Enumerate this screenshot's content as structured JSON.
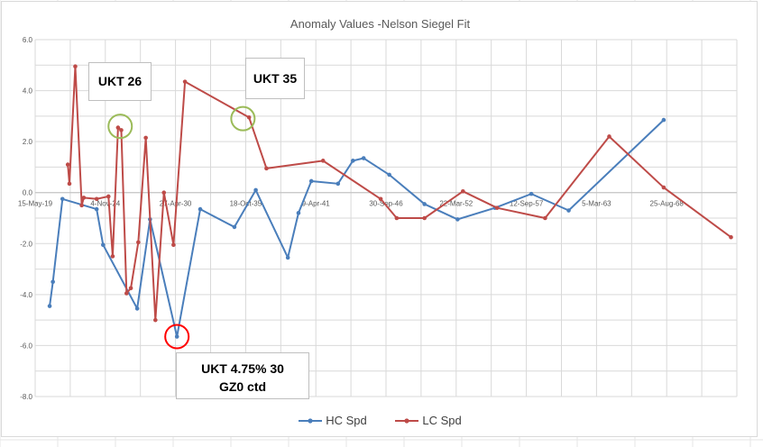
{
  "chart_data": {
    "type": "scatter",
    "title": "Anomaly Values -Nelson Siegel Fit",
    "x_ticks": [
      "15-May-19",
      "4-Nov-24",
      "27-Apr-30",
      "18-Oct-35",
      "9-Apr-41",
      "30-Sep-46",
      "22-Mar-52",
      "12-Sep-57",
      "5-Mar-63",
      "25-Aug-68"
    ],
    "y_ticks": [
      "6.0",
      "4.0",
      "2.0",
      "0.0",
      "-2.0",
      "-4.0",
      "-6.0",
      "-8.0"
    ],
    "ylim": [
      -8,
      6
    ],
    "xlim": [
      "2019-05-15",
      "2074-02-15"
    ],
    "grid": true,
    "legend_position": "bottom",
    "series": [
      {
        "name": "HC Spd",
        "color": "#4a7ebb",
        "points": [
          [
            "2020-07-01",
            -4.45
          ],
          [
            "2020-10-01",
            -3.5
          ],
          [
            "2021-07-01",
            -0.25
          ],
          [
            "2024-03-01",
            -0.65
          ],
          [
            "2024-09-01",
            -2.05
          ],
          [
            "2027-05-01",
            -4.55
          ],
          [
            "2028-05-01",
            -1.05
          ],
          [
            "2030-06-07",
            -5.65
          ],
          [
            "2032-04-01",
            -0.65
          ],
          [
            "2034-12-01",
            -1.35
          ],
          [
            "2036-08-01",
            0.1
          ],
          [
            "2039-02-01",
            -2.55
          ],
          [
            "2039-12-01",
            -0.8
          ],
          [
            "2040-12-01",
            0.45
          ],
          [
            "2043-01-01",
            0.35
          ],
          [
            "2044-03-01",
            1.25
          ],
          [
            "2045-01-01",
            1.35
          ],
          [
            "2047-01-01",
            0.7
          ],
          [
            "2049-10-01",
            -0.45
          ],
          [
            "2052-05-01",
            -1.05
          ],
          [
            "2055-04-01",
            -0.6
          ],
          [
            "2058-02-01",
            -0.05
          ],
          [
            "2061-01-01",
            -0.7
          ],
          [
            "2068-06-01",
            2.85
          ]
        ]
      },
      {
        "name": "LC Spd",
        "color": "#be4b48",
        "points": [
          [
            "2021-12-01",
            1.1
          ],
          [
            "2022-01-15",
            0.35
          ],
          [
            "2022-07-01",
            4.95
          ],
          [
            "2023-01-01",
            -0.5
          ],
          [
            "2023-03-01",
            -0.2
          ],
          [
            "2024-03-01",
            -0.25
          ],
          [
            "2025-02-01",
            -0.15
          ],
          [
            "2025-06-01",
            -2.5
          ],
          [
            "2025-11-01",
            2.55
          ],
          [
            "2026-02-01",
            2.45
          ],
          [
            "2026-07-01",
            -3.95
          ],
          [
            "2026-11-01",
            -3.75
          ],
          [
            "2027-06-01",
            -1.95
          ],
          [
            "2028-01-01",
            2.15
          ],
          [
            "2028-10-01",
            -5.0
          ],
          [
            "2029-06-01",
            0.0
          ],
          [
            "2030-03-01",
            -2.05
          ],
          [
            "2031-01-22",
            4.35
          ],
          [
            "2036-01-22",
            2.95
          ],
          [
            "2037-06-01",
            0.95
          ],
          [
            "2041-11-01",
            1.25
          ],
          [
            "2046-05-01",
            -0.25
          ],
          [
            "2047-08-01",
            -1.0
          ],
          [
            "2049-10-01",
            -1.0
          ],
          [
            "2052-10-01",
            0.05
          ],
          [
            "2055-06-01",
            -0.6
          ],
          [
            "2059-03-01",
            -1.0
          ],
          [
            "2064-03-01",
            2.2
          ],
          [
            "2068-06-01",
            0.2
          ],
          [
            "2073-09-01",
            -1.75
          ]
        ]
      }
    ],
    "annotations": [
      {
        "name": "ukt-26",
        "lines": [
          "UKT 26"
        ],
        "circle_color": "#9bbb59",
        "at": [
          "2026-01-01",
          2.6
        ]
      },
      {
        "name": "ukt-35",
        "lines": [
          "UKT 35"
        ],
        "circle_color": "#9bbb59",
        "at": [
          "2035-08-01",
          2.9
        ]
      },
      {
        "name": "ukt-4-75-30",
        "lines": [
          "UKT 4.75% 30",
          "GZ0 ctd"
        ],
        "circle_color": "#ff0000",
        "at": [
          "2030-06-07",
          -5.65
        ]
      }
    ]
  }
}
